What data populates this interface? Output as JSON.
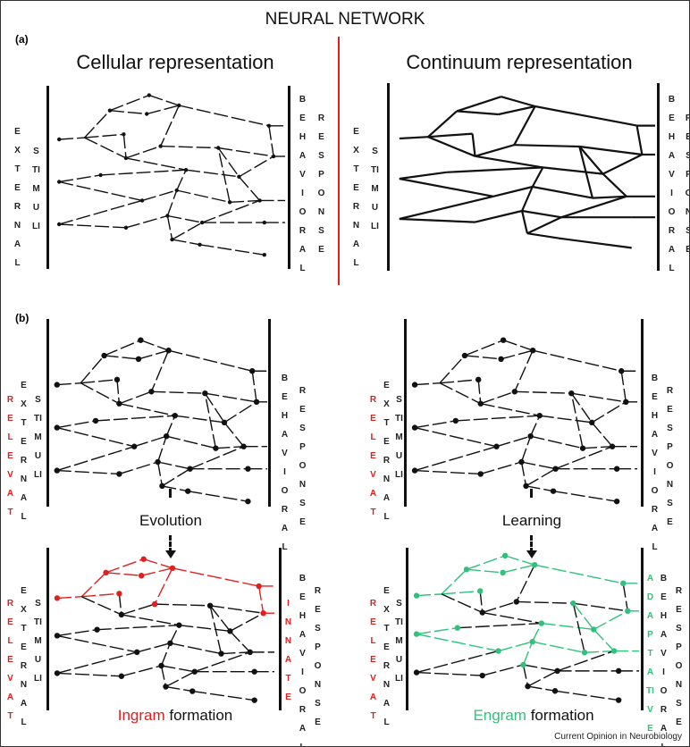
{
  "title": "NEURAL NETWORK",
  "panel_a": {
    "label": "(a)",
    "left_heading": "Cellular representation",
    "right_heading": "Continuum representation",
    "input_labels": [
      "EXTERNAL",
      "STIMULI"
    ],
    "output_labels": [
      "BEHAVIORAL",
      "RESPONSE"
    ]
  },
  "panel_b": {
    "label": "(b)",
    "relevant_label": "RELEVAT",
    "input_labels": [
      "EXTERNAL",
      "STIMULI"
    ],
    "output_labels": [
      "BEHAVIORAL",
      "RESPONSE"
    ],
    "left": {
      "process": "Evolution",
      "output_tag": "INNATE",
      "caption_highlight": "Ingram",
      "caption_rest": " formation"
    },
    "right": {
      "process": "Learning",
      "output_tag": "ADAPTATIVE",
      "caption_highlight": "Engram",
      "caption_rest": " formation"
    }
  },
  "colors": {
    "divider": "#e0201f",
    "ingram": "#e0201f",
    "engram": "#2fc27a",
    "network": "#111111"
  },
  "credit": "Current Opinion in Neurobiology"
}
